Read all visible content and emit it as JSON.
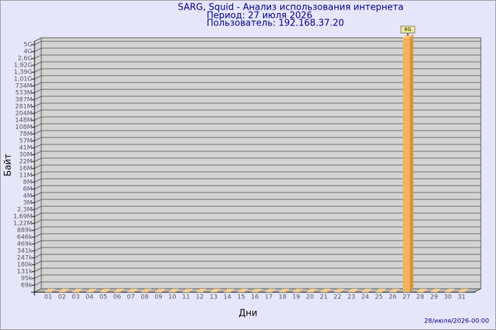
{
  "chart_data": {
    "type": "bar",
    "title": "SARG, Squid - Анализ использования интернета",
    "subtitle": "Период: 27 июля 2026",
    "user": "Пользователь: 192.168.37.20",
    "y_label": "Байт",
    "x_label": "Дни",
    "footer": "28/июля/2026-00:00",
    "color": "#f2b35a",
    "grid": true,
    "categories": [
      "01",
      "02",
      "03",
      "04",
      "05",
      "06",
      "07",
      "08",
      "09",
      "10",
      "11",
      "12",
      "13",
      "14",
      "15",
      "16",
      "17",
      "18",
      "19",
      "20",
      "21",
      "22",
      "23",
      "24",
      "25",
      "26",
      "27",
      "28",
      "29",
      "30",
      "31"
    ],
    "values": [
      0,
      0,
      0,
      0,
      0,
      0,
      0,
      0,
      0,
      0,
      0,
      0,
      0,
      0,
      0,
      0,
      0,
      0,
      0,
      0,
      0,
      0,
      0,
      0,
      0,
      0,
      6000000000,
      0,
      0,
      0,
      0
    ],
    "value_labels": [
      null,
      null,
      null,
      null,
      null,
      null,
      null,
      null,
      null,
      null,
      null,
      null,
      null,
      null,
      null,
      null,
      null,
      null,
      null,
      null,
      null,
      null,
      null,
      null,
      null,
      null,
      "6G",
      null,
      null,
      null,
      null
    ],
    "ylim": [
      50000,
      6000000000
    ],
    "yticks": [
      {
        "value": 69000,
        "label": "69k"
      },
      {
        "value": 95000,
        "label": "95k"
      },
      {
        "value": 131000,
        "label": "131k"
      },
      {
        "value": 180000,
        "label": "180k"
      },
      {
        "value": 247000,
        "label": "247k"
      },
      {
        "value": 341000,
        "label": "341k"
      },
      {
        "value": 469000,
        "label": "469k"
      },
      {
        "value": 646000,
        "label": "646k"
      },
      {
        "value": 889000,
        "label": "889k"
      },
      {
        "value": 1220000,
        "label": "1,22M"
      },
      {
        "value": 1690000,
        "label": "1,69M"
      },
      {
        "value": 2300000,
        "label": "2,3M"
      },
      {
        "value": 3000000,
        "label": "3M"
      },
      {
        "value": 4000000,
        "label": "4M"
      },
      {
        "value": 6000000,
        "label": "6M"
      },
      {
        "value": 8000000,
        "label": "8M"
      },
      {
        "value": 11000000,
        "label": "11M"
      },
      {
        "value": 16000000,
        "label": "16M"
      },
      {
        "value": 22000000,
        "label": "22M"
      },
      {
        "value": 30000000,
        "label": "30M"
      },
      {
        "value": 41000000,
        "label": "41M"
      },
      {
        "value": 57000000,
        "label": "57M"
      },
      {
        "value": 78000000,
        "label": "78M"
      },
      {
        "value": 108000000,
        "label": "108M"
      },
      {
        "value": 148000000,
        "label": "148M"
      },
      {
        "value": 204000000,
        "label": "204M"
      },
      {
        "value": 281000000,
        "label": "281M"
      },
      {
        "value": 387000000,
        "label": "387M"
      },
      {
        "value": 533000000,
        "label": "533M"
      },
      {
        "value": 734000000,
        "label": "734M"
      },
      {
        "value": 1010000000,
        "label": "1,01G"
      },
      {
        "value": 1390000000,
        "label": "1,39G"
      },
      {
        "value": 1920000000,
        "label": "1,92G"
      },
      {
        "value": 2600000000,
        "label": "2,6G"
      },
      {
        "value": 4000000000,
        "label": "4G"
      },
      {
        "value": 5000000000,
        "label": "5G"
      }
    ]
  }
}
